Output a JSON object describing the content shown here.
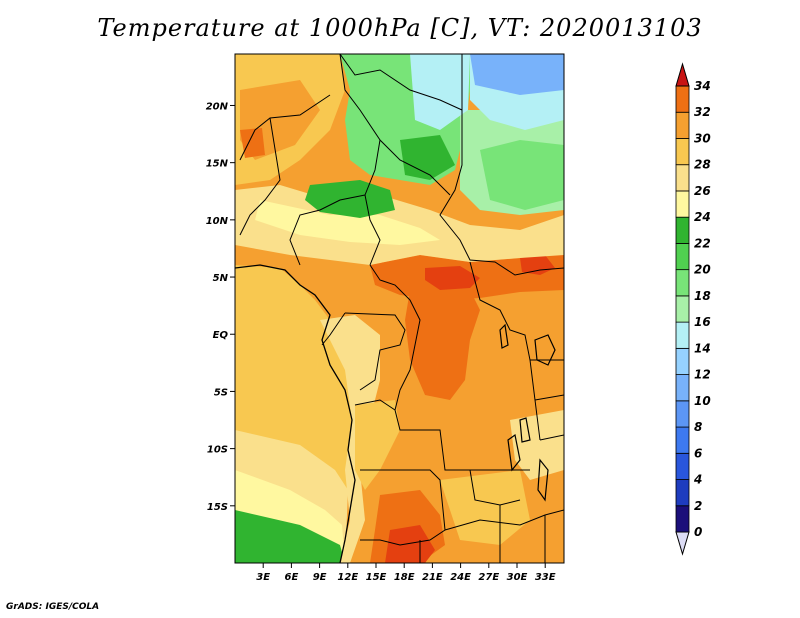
{
  "title": "Temperature at 1000hPa [C], VT: 2020013103",
  "credit": "GrADS: IGES/COLA",
  "map": {
    "lat_ticks": [
      "20N",
      "15N",
      "10N",
      "5N",
      "EQ",
      "5S",
      "10S",
      "15S"
    ],
    "lon_ticks": [
      "3E",
      "6E",
      "9E",
      "12E",
      "15E",
      "18E",
      "21E",
      "24E",
      "27E",
      "30E",
      "33E"
    ],
    "extent": {
      "lon_min": 0.0,
      "lon_max": 35.0,
      "lat_min": -20.0,
      "lat_max": 24.5
    }
  },
  "colorbar": {
    "labels": [
      "0",
      "2",
      "4",
      "6",
      "8",
      "10",
      "12",
      "14",
      "16",
      "18",
      "20",
      "22",
      "24",
      "26",
      "28",
      "30",
      "32",
      "34"
    ],
    "colors": [
      "#1b0f7a",
      "#1e3cbf",
      "#2956dc",
      "#3d79f0",
      "#5c96f5",
      "#78b2fa",
      "#96d2ff",
      "#b4f0f5",
      "#a8f0a8",
      "#78e478",
      "#50d050",
      "#30b430",
      "#fff8a0",
      "#fae08c",
      "#f8c850",
      "#f5a030",
      "#ee7014",
      "#e44010",
      "#c81414"
    ]
  },
  "legend": {
    "colors": {
      "green": "#30b430",
      "light_green": "#78e478",
      "pale_green": "#a8f0a8",
      "light_blue": "#b4f0f5",
      "blue": "#78b2fa",
      "pale_yellow": "#fff8a0",
      "yellow": "#fae08c",
      "light_orange": "#f8c850",
      "orange": "#f5a030",
      "dark_orange": "#ee7014",
      "red_orange": "#e44010"
    }
  }
}
